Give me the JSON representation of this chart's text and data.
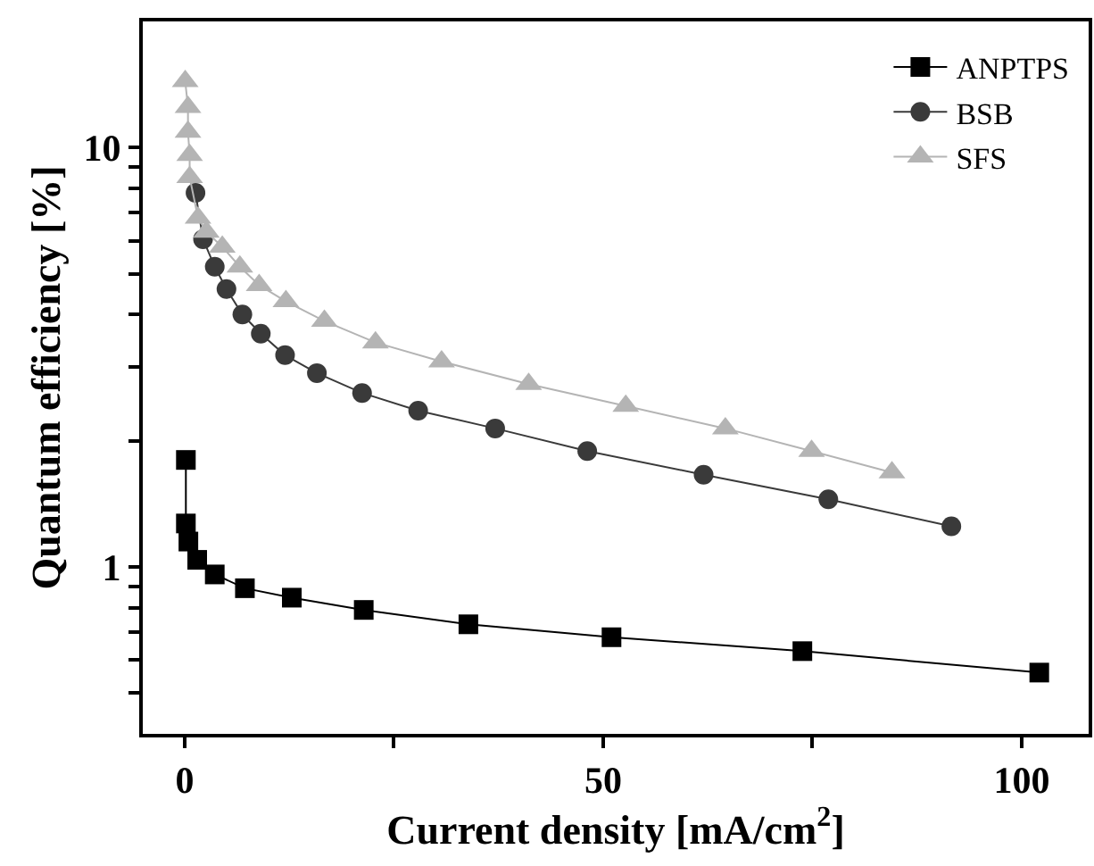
{
  "chart_data": {
    "type": "line",
    "xlabel": "Current density [mA/cm$^{2}$]",
    "ylabel": "Quantum efficiency [%]",
    "log": "y",
    "xlim": [
      -5,
      108
    ],
    "xticks": [
      0,
      {
        "value": 25,
        "label": null
      },
      50,
      {
        "value": 75,
        "label": null
      },
      100
    ],
    "ylim": [
      0.4,
      20
    ],
    "yticks": [
      {
        "value": 0.5,
        "label": null
      },
      {
        "value": 0.6,
        "label": null
      },
      {
        "value": 0.7,
        "label": null
      },
      {
        "value": 0.8,
        "label": null
      },
      {
        "value": 0.9,
        "label": null
      },
      1,
      {
        "value": 2,
        "label": null
      },
      {
        "value": 3,
        "label": null
      },
      {
        "value": 4,
        "label": null
      },
      {
        "value": 5,
        "label": null
      },
      {
        "value": 6,
        "label": null
      },
      {
        "value": 7,
        "label": null
      },
      {
        "value": 8,
        "label": null
      },
      {
        "value": 9,
        "label": null
      },
      10
    ],
    "grid": false,
    "legend": "top right",
    "line_style": "solid",
    "series": [
      {
        "name": "ANPTPS",
        "color": "#000000",
        "marker": "square",
        "x": [
          0.15,
          0.15,
          0.45,
          1.5,
          3.6,
          7.2,
          12.8,
          21.4,
          33.9,
          51.0,
          73.8,
          102.1
        ],
        "values": [
          1.8,
          1.27,
          1.15,
          1.04,
          0.96,
          0.89,
          0.845,
          0.79,
          0.73,
          0.68,
          0.63,
          0.56
        ]
      },
      {
        "name": "BSB",
        "color": "#3a3a3a",
        "marker": "circle",
        "x": [
          1.3,
          2.2,
          3.6,
          5.0,
          6.9,
          9.1,
          12.0,
          15.8,
          21.2,
          27.9,
          37.1,
          48.1,
          62.0,
          76.9,
          91.6
        ],
        "values": [
          7.8,
          6.05,
          5.2,
          4.6,
          4.0,
          3.6,
          3.2,
          2.9,
          2.6,
          2.36,
          2.14,
          1.89,
          1.66,
          1.45,
          1.25
        ]
      },
      {
        "name": "SFS",
        "color": "#b4b4b4",
        "marker": "triangle",
        "x": [
          0.07,
          0.4,
          0.4,
          0.6,
          0.6,
          1.6,
          2.6,
          4.5,
          6.6,
          8.9,
          12.1,
          16.7,
          22.8,
          30.7,
          41.1,
          52.7,
          64.6,
          74.9,
          84.5
        ],
        "values": [
          14.4,
          12.5,
          10.9,
          9.6,
          8.5,
          6.8,
          6.3,
          5.8,
          5.2,
          4.7,
          4.3,
          3.86,
          3.43,
          3.09,
          2.73,
          2.42,
          2.14,
          1.89,
          1.68
        ]
      }
    ]
  }
}
